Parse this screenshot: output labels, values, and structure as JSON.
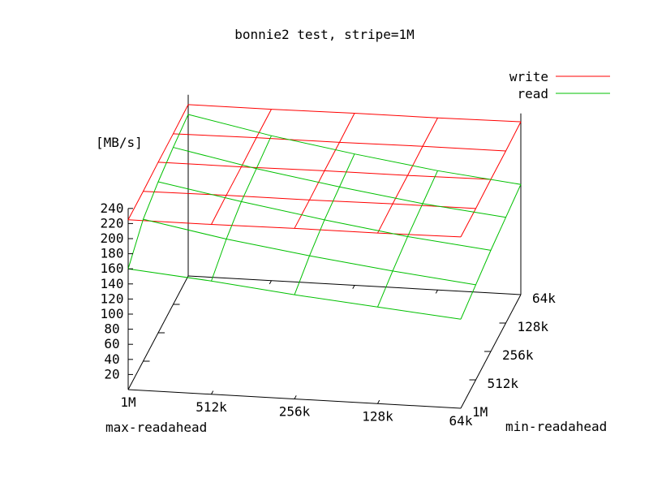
{
  "chart_data": {
    "type": "surface3d",
    "title": "bonnie2 test, stripe=1M",
    "zlabel": "[MB/s]",
    "xlabel": "max-readahead",
    "ylabel": "min-readahead",
    "x_ticks": [
      "1M",
      "512k",
      "256k",
      "128k",
      "64k"
    ],
    "y_ticks": [
      "1M",
      "512k",
      "256k",
      "128k",
      "64k"
    ],
    "z_ticks": [
      "20",
      "40",
      "60",
      "80",
      "100",
      "120",
      "140",
      "160",
      "180",
      "200",
      "220",
      "240"
    ],
    "zlim": [
      0,
      240
    ],
    "legend_position": "top-right",
    "series": [
      {
        "name": "write",
        "color": "#ff0000",
        "grid": [
          [
            225,
            225,
            226,
            226,
            227
          ],
          [
            225,
            226,
            226,
            227,
            227
          ],
          [
            226,
            226,
            227,
            227,
            228
          ],
          [
            226,
            227,
            227,
            228,
            228
          ],
          [
            227,
            227,
            228,
            228,
            229
          ]
        ]
      },
      {
        "name": "read",
        "color": "#00c000",
        "grid": [
          [
            160,
            150,
            138,
            128,
            118
          ],
          [
            188,
            168,
            152,
            138,
            126
          ],
          [
            200,
            180,
            162,
            146,
            134
          ],
          [
            208,
            186,
            168,
            152,
            140
          ],
          [
            214,
            192,
            174,
            158,
            146
          ]
        ]
      }
    ]
  }
}
